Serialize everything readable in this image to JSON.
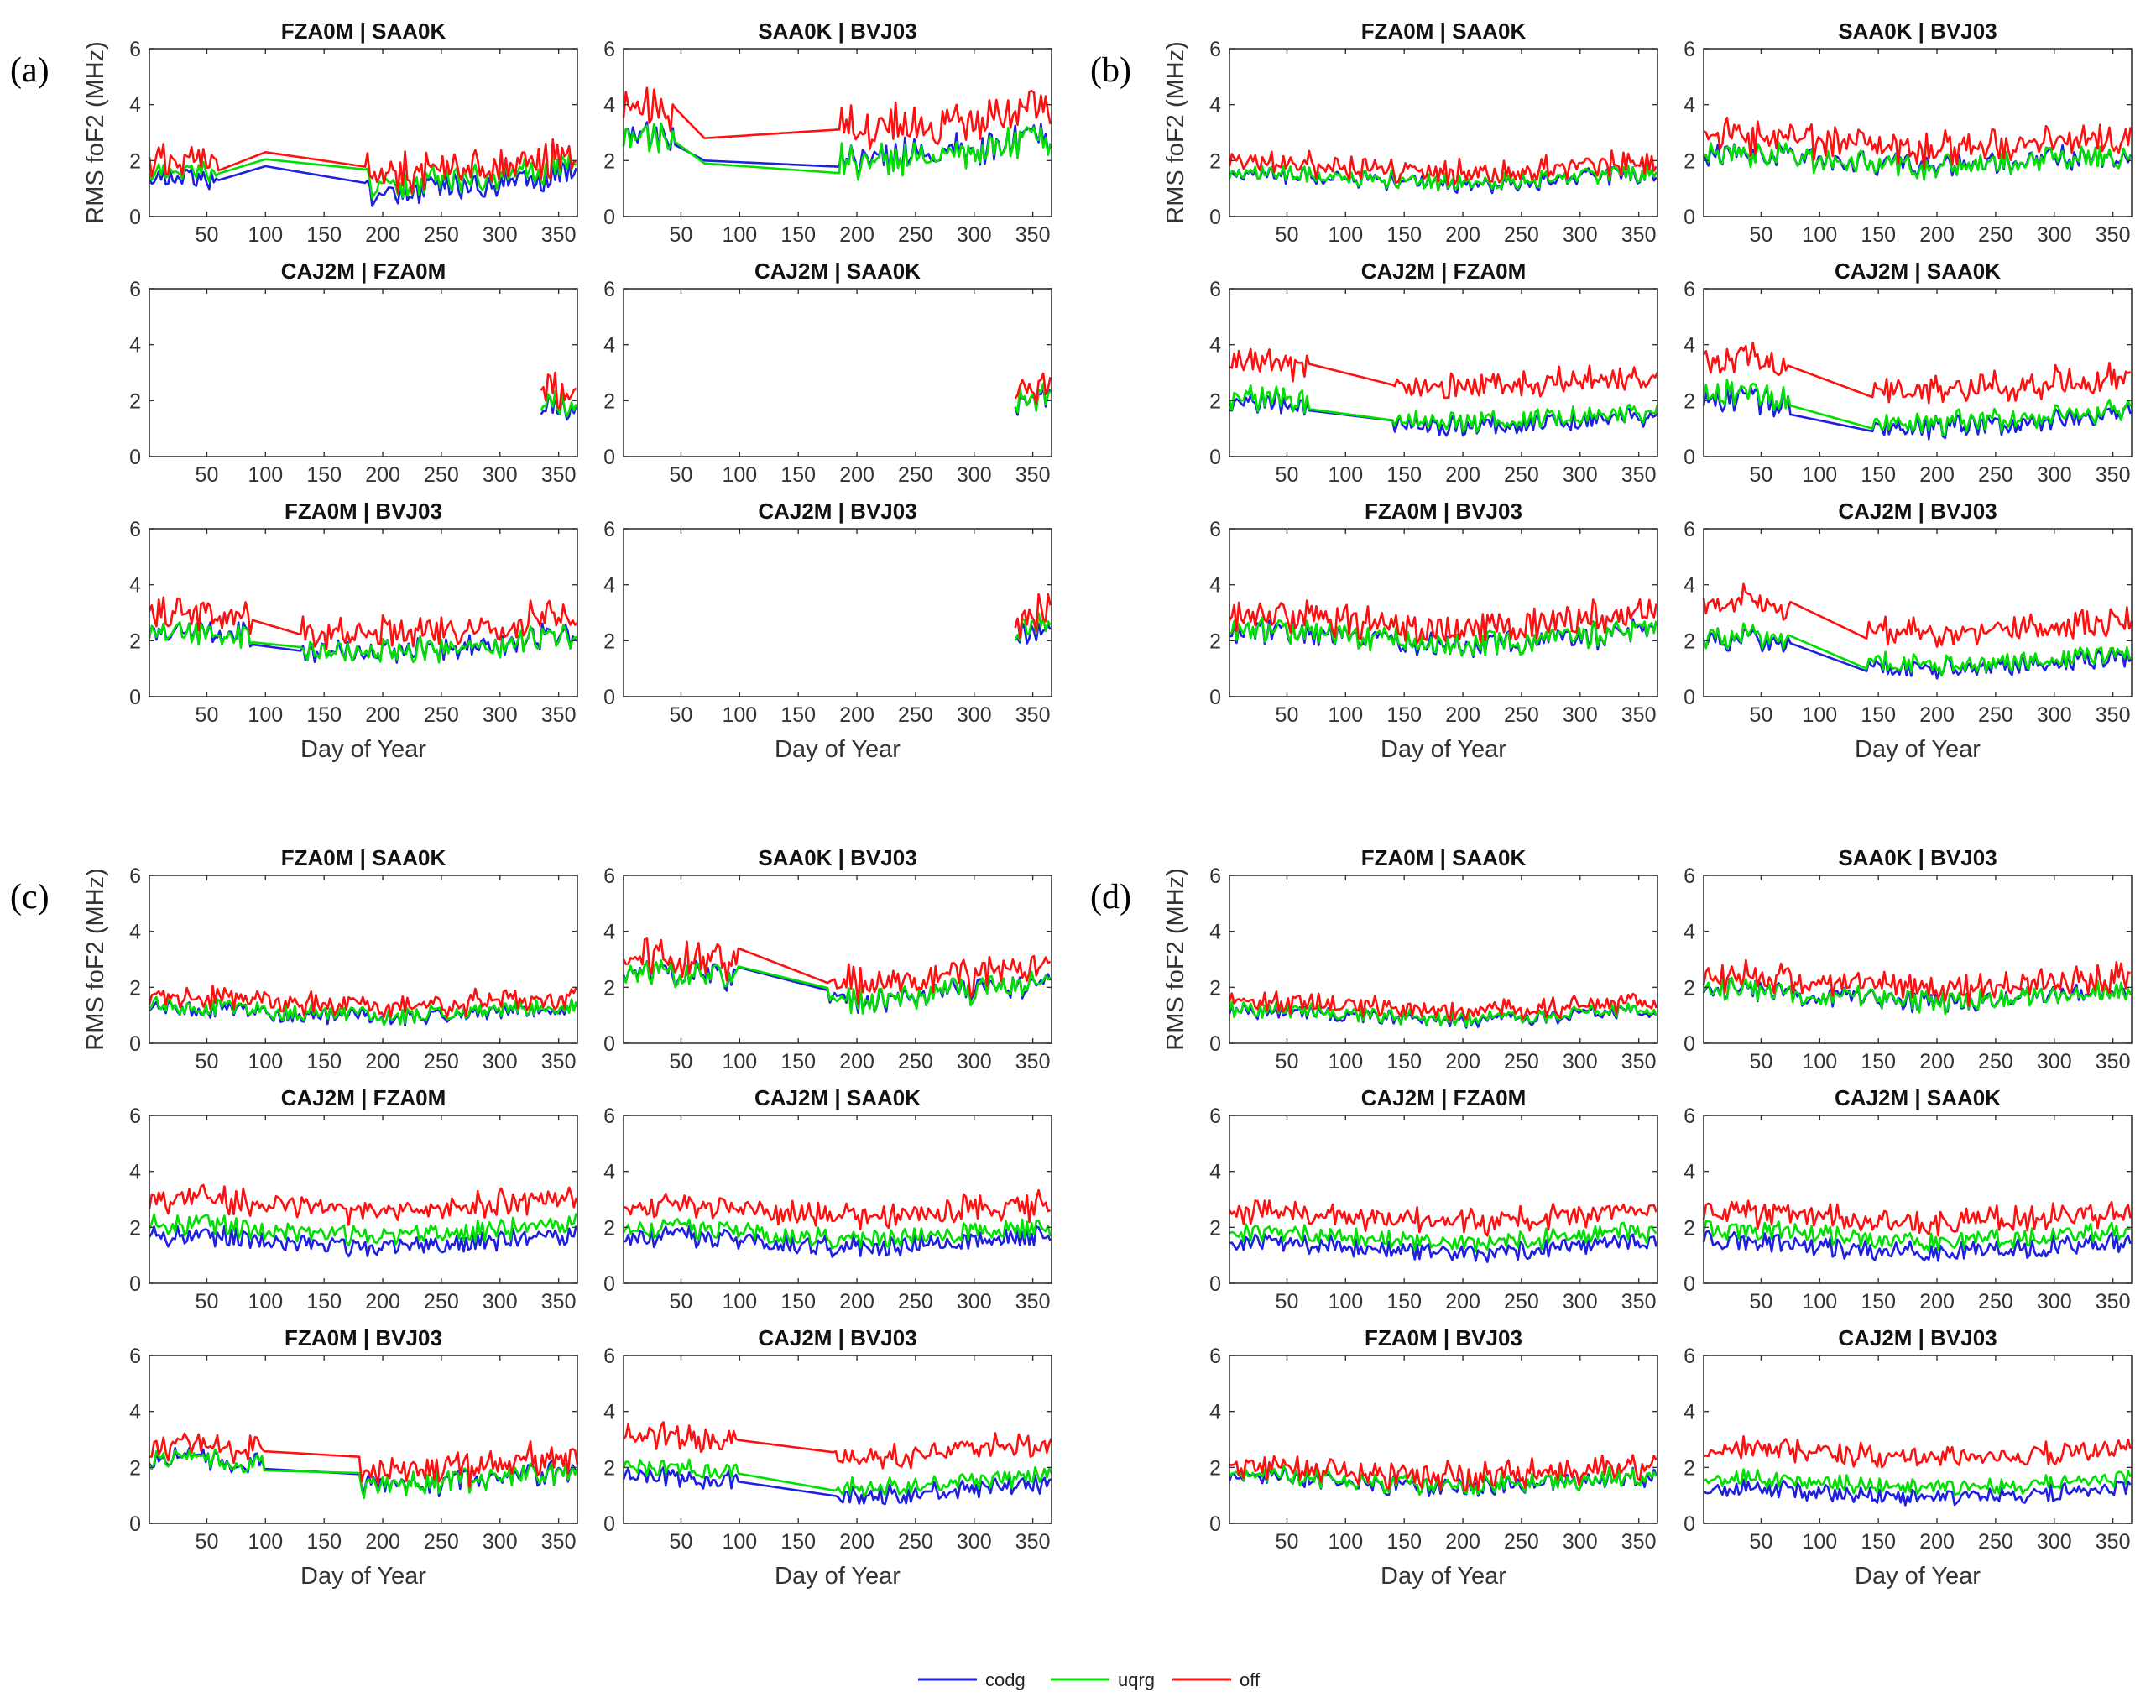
{
  "chart_data": {
    "type": "line",
    "ylabel": "RMS foF2 (MHz)",
    "xlabel": "Day of Year",
    "xlim": [
      1,
      366
    ],
    "ylim": [
      0,
      6
    ],
    "xticks": [
      50,
      100,
      150,
      200,
      250,
      300,
      350
    ],
    "yticks": [
      0,
      2,
      4,
      6
    ],
    "series_names": [
      "codg",
      "uqrg",
      "off"
    ],
    "colors": {
      "codg": "#1f1fe0",
      "uqrg": "#00e000",
      "off": "#ff1010"
    },
    "legend": {
      "position": "bottom-center",
      "entries": [
        "codg",
        "uqrg",
        "off"
      ]
    },
    "groups": [
      {
        "label": "(a)",
        "subplots": [
          {
            "title": "FZA0M | SAA0K",
            "segments": [
              [
                1,
                48,
                1.2,
                0.45
              ],
              [
                50,
                60,
                1.1,
                0.4
              ],
              [
                100,
                100,
                1.8,
                0
              ],
              [
                185,
                366,
                1.2,
                0.55
              ]
            ],
            "offsets": [
              0,
              0.25,
              0.5
            ]
          },
          {
            "title": "SAA0K | BVJ03",
            "segments": [
              [
                1,
                45,
                2.6,
                0.6
              ],
              [
                70,
                70,
                2.0,
                0
              ],
              [
                185,
                366,
                2.4,
                0.7
              ]
            ],
            "offsets": [
              0,
              -0.1,
              0.8
            ]
          },
          {
            "title": "CAJ2M | FZA0M",
            "segments": [
              [
                335,
                366,
                1.6,
                0.55
              ]
            ],
            "offsets": [
              0,
              0.1,
              0.35
            ]
          },
          {
            "title": "CAJ2M | SAA0K",
            "segments": [
              [
                335,
                366,
                1.8,
                0.5
              ]
            ],
            "offsets": [
              0,
              0.05,
              0.25
            ]
          },
          {
            "title": "FZA0M | BVJ03",
            "segments": [
              [
                1,
                90,
                2.1,
                0.45
              ],
              [
                130,
                366,
                1.9,
                0.55
              ]
            ],
            "offsets": [
              0,
              0.0,
              0.55
            ]
          },
          {
            "title": "CAJ2M | BVJ03",
            "segments": [
              [
                335,
                366,
                2.0,
                0.6
              ]
            ],
            "offsets": [
              0,
              0.15,
              0.45
            ]
          }
        ]
      },
      {
        "label": "(b)",
        "subplots": [
          {
            "title": "FZA0M | SAA0K",
            "segments": [
              [
                1,
                366,
                1.35,
                0.35
              ]
            ],
            "offsets": [
              0,
              0.05,
              0.3
            ]
          },
          {
            "title": "SAA0K | BVJ03",
            "segments": [
              [
                1,
                366,
                2.0,
                0.5
              ]
            ],
            "offsets": [
              0,
              0.0,
              0.5
            ]
          },
          {
            "title": "CAJ2M | FZA0M",
            "segments": [
              [
                1,
                70,
                1.7,
                0.5
              ],
              [
                140,
                366,
                1.3,
                0.4
              ]
            ],
            "offsets": [
              0,
              0.15,
              1.3
            ]
          },
          {
            "title": "CAJ2M | SAA0K",
            "segments": [
              [
                1,
                75,
                1.8,
                0.6
              ],
              [
                145,
                366,
                1.3,
                0.45
              ]
            ],
            "offsets": [
              0,
              0.15,
              1.2
            ]
          },
          {
            "title": "FZA0M | BVJ03",
            "segments": [
              [
                1,
                366,
                2.1,
                0.5
              ]
            ],
            "offsets": [
              0,
              0.05,
              0.45
            ]
          },
          {
            "title": "CAJ2M | BVJ03",
            "segments": [
              [
                1,
                75,
                1.8,
                0.5
              ],
              [
                140,
                366,
                1.2,
                0.4
              ]
            ],
            "offsets": [
              0,
              0.15,
              1.2
            ]
          }
        ]
      },
      {
        "label": "(c)",
        "subplots": [
          {
            "title": "FZA0M | SAA0K",
            "segments": [
              [
                1,
                366,
                1.1,
                0.35
              ]
            ],
            "offsets": [
              0,
              0.05,
              0.3
            ]
          },
          {
            "title": "SAA0K | BVJ03",
            "segments": [
              [
                1,
                100,
                2.3,
                0.5
              ],
              [
                175,
                366,
                1.8,
                0.55
              ]
            ],
            "offsets": [
              0,
              0.0,
              0.4
            ]
          },
          {
            "title": "CAJ2M | FZA0M",
            "segments": [
              [
                1,
                366,
                1.5,
                0.4
              ]
            ],
            "offsets": [
              0,
              0.4,
              1.2
            ]
          },
          {
            "title": "CAJ2M | SAA0K",
            "segments": [
              [
                1,
                366,
                1.5,
                0.4
              ]
            ],
            "offsets": [
              0,
              0.3,
              1.0
            ]
          },
          {
            "title": "FZA0M | BVJ03",
            "segments": [
              [
                1,
                100,
                2.1,
                0.45
              ],
              [
                180,
                366,
                1.6,
                0.5
              ]
            ],
            "offsets": [
              0,
              0.0,
              0.35
            ]
          },
          {
            "title": "CAJ2M | BVJ03",
            "segments": [
              [
                1,
                100,
                1.5,
                0.4
              ],
              [
                180,
                366,
                1.2,
                0.4
              ]
            ],
            "offsets": [
              0,
              0.3,
              1.3
            ]
          }
        ]
      },
      {
        "label": "(d)",
        "subplots": [
          {
            "title": "FZA0M | SAA0K",
            "segments": [
              [
                1,
                366,
                1.0,
                0.3
              ]
            ],
            "offsets": [
              0,
              0.05,
              0.25
            ]
          },
          {
            "title": "SAA0K | BVJ03",
            "segments": [
              [
                1,
                366,
                1.7,
                0.45
              ]
            ],
            "offsets": [
              0,
              0.0,
              0.35
            ]
          },
          {
            "title": "CAJ2M | FZA0M",
            "segments": [
              [
                1,
                366,
                1.3,
                0.4
              ]
            ],
            "offsets": [
              0,
              0.35,
              1.0
            ]
          },
          {
            "title": "CAJ2M | SAA0K",
            "segments": [
              [
                1,
                366,
                1.3,
                0.4
              ]
            ],
            "offsets": [
              0,
              0.4,
              0.95
            ]
          },
          {
            "title": "FZA0M | BVJ03",
            "segments": [
              [
                1,
                366,
                1.5,
                0.4
              ]
            ],
            "offsets": [
              0,
              0.05,
              0.3
            ]
          },
          {
            "title": "CAJ2M | BVJ03",
            "segments": [
              [
                1,
                366,
                1.1,
                0.35
              ]
            ],
            "offsets": [
              0,
              0.35,
              1.3
            ]
          }
        ]
      }
    ]
  }
}
